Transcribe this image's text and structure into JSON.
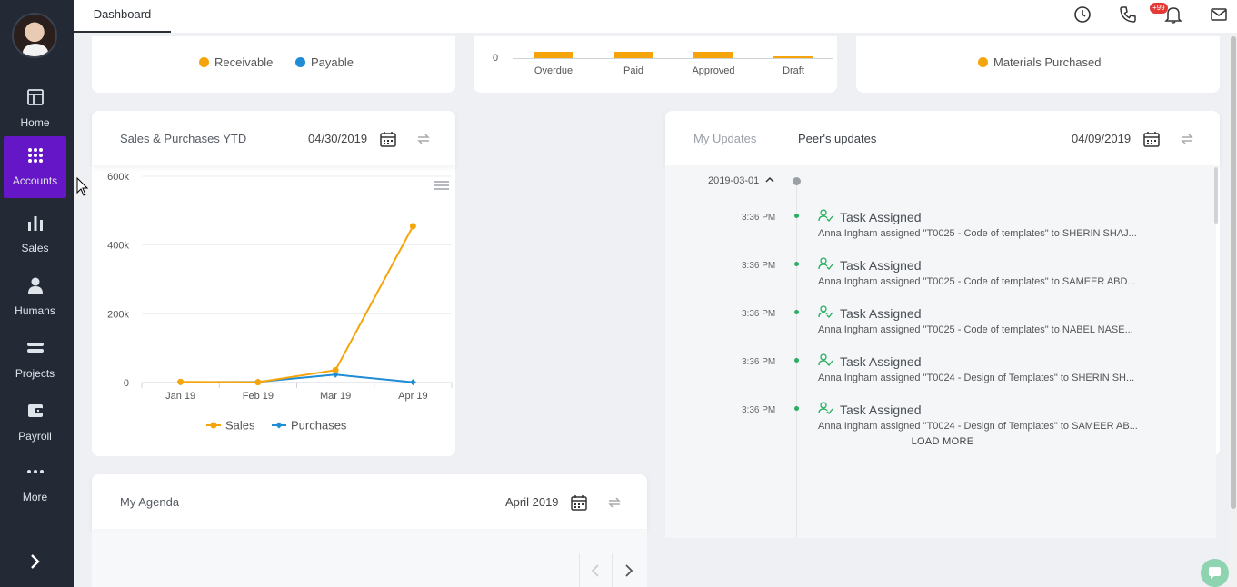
{
  "sidebar": {
    "items": [
      {
        "label": "Home",
        "icon": "home-icon"
      },
      {
        "label": "Accounts",
        "icon": "grid-icon"
      },
      {
        "label": "Sales",
        "icon": "bar-chart-icon"
      },
      {
        "label": "Humans",
        "icon": "person-icon"
      },
      {
        "label": "Projects",
        "icon": "projects-icon"
      },
      {
        "label": "Payroll",
        "icon": "wallet-icon"
      },
      {
        "label": "More",
        "icon": "more-icon"
      }
    ],
    "active_color": "#6516c7"
  },
  "topbar": {
    "tab": "Dashboard",
    "badge": "+99"
  },
  "top_cards": {
    "left_legend": [
      "Receivable",
      "Payable"
    ],
    "middle": {
      "zero_label": "0",
      "categories": [
        "Overdue",
        "Paid",
        "Approved",
        "Draft"
      ]
    },
    "right_legend": [
      "Materials Purchased"
    ]
  },
  "sales_card": {
    "title": "Sales & Purchases YTD",
    "date": "04/30/2019"
  },
  "chart_data": {
    "type": "line",
    "categories": [
      "Jan 19",
      "Feb 19",
      "Mar 19",
      "Apr 19"
    ],
    "series": [
      {
        "name": "Sales",
        "values": [
          2000,
          1000,
          36000,
          455000
        ],
        "color": "#f5a50b"
      },
      {
        "name": "Purchases",
        "values": [
          1000,
          2000,
          23000,
          1000
        ],
        "color": "#1f8dd6"
      }
    ],
    "ylim": [
      0,
      600000
    ],
    "yticks": [
      "0",
      "200k",
      "400k",
      "600k"
    ],
    "grid": true,
    "legend": "bottom"
  },
  "updates": {
    "tab_my": "My Updates",
    "tab_peer": "Peer's updates",
    "date": "04/09/2019",
    "group_date": "2019-03-01",
    "items": [
      {
        "time": "3:36 PM",
        "title": "Task Assigned",
        "desc": "Anna Ingham assigned \"T0025 - Code of templates\" to SHERIN SHAJ..."
      },
      {
        "time": "3:36 PM",
        "title": "Task Assigned",
        "desc": "Anna Ingham assigned \"T0025 - Code of templates\" to SAMEER ABD..."
      },
      {
        "time": "3:36 PM",
        "title": "Task Assigned",
        "desc": "Anna Ingham assigned \"T0025 - Code of templates\" to NABEL NASE..."
      },
      {
        "time": "3:36 PM",
        "title": "Task Assigned",
        "desc": "Anna Ingham assigned \"T0024 - Design of Templates\" to SHERIN SH..."
      },
      {
        "time": "3:36 PM",
        "title": "Task Assigned",
        "desc": "Anna Ingham assigned \"T0024 - Design of Templates\" to SAMEER AB..."
      }
    ],
    "load_more": "LOAD MORE"
  },
  "agenda": {
    "title": "My Agenda",
    "date": "April 2019"
  }
}
